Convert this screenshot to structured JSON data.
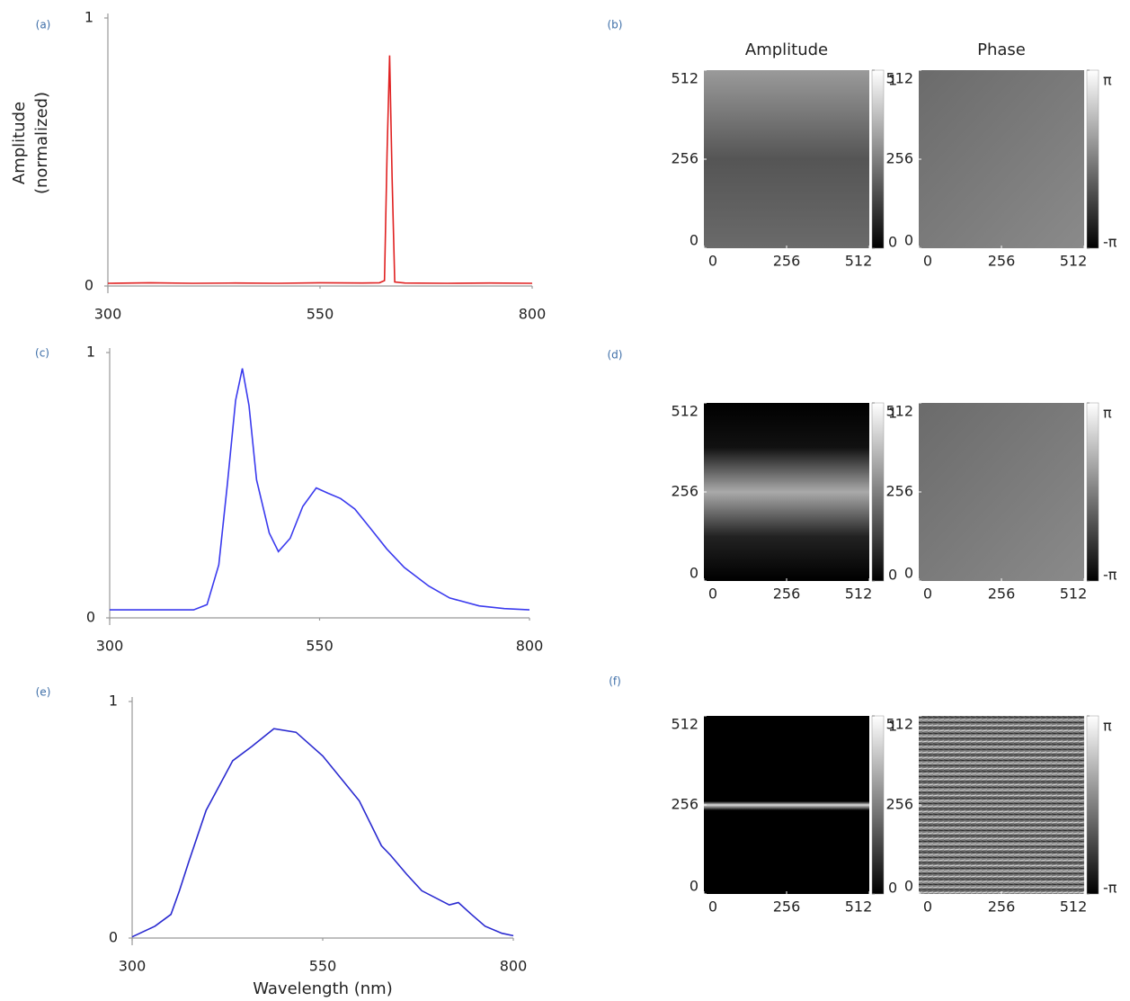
{
  "chart_data": [
    {
      "type": "line",
      "panel_label": "(a)",
      "ylabel": [
        "Amplitude",
        "(normalized)"
      ],
      "color": "#e02020",
      "x": [
        300,
        350,
        400,
        450,
        500,
        550,
        600,
        620,
        626,
        629,
        632,
        635,
        638,
        650,
        700,
        750,
        800
      ],
      "values": [
        0.01,
        0.012,
        0.01,
        0.011,
        0.01,
        0.012,
        0.011,
        0.012,
        0.02,
        0.5,
        0.86,
        0.4,
        0.015,
        0.011,
        0.01,
        0.011,
        0.01
      ],
      "xlim": [
        300,
        800
      ],
      "xticks": [
        300,
        550,
        800
      ],
      "ylim": [
        0,
        1
      ],
      "yticks": [
        0,
        1
      ]
    },
    {
      "type": "image",
      "panel_label": "(b)",
      "panels": [
        {
          "title": "Amplitude",
          "xlim": [
            0,
            512
          ],
          "xticks": [
            0,
            256,
            512
          ],
          "ylim": [
            0,
            512
          ],
          "yticks": [
            0,
            256,
            512
          ],
          "clim": [
            0,
            1
          ],
          "cticks": [
            0,
            1
          ]
        },
        {
          "title": "Phase",
          "xlim": [
            0,
            512
          ],
          "xticks": [
            0,
            256,
            512
          ],
          "ylim": [
            0,
            512
          ],
          "yticks": [
            0,
            256,
            512
          ],
          "clim": [
            -3.14159,
            3.14159
          ],
          "cticks": [
            {
              "value": -3.14159,
              "label": "-π"
            },
            {
              "value": 3.14159,
              "label": "π"
            }
          ]
        }
      ]
    },
    {
      "type": "line",
      "panel_label": "(c)",
      "color": "#3a3aee",
      "x": [
        300,
        350,
        400,
        416,
        430,
        440,
        450,
        458,
        466,
        475,
        490,
        501,
        515,
        530,
        546,
        560,
        575,
        592,
        610,
        630,
        651,
        680,
        705,
        740,
        770,
        800
      ],
      "values": [
        0.03,
        0.03,
        0.03,
        0.05,
        0.2,
        0.5,
        0.82,
        0.94,
        0.8,
        0.52,
        0.32,
        0.25,
        0.3,
        0.42,
        0.49,
        0.47,
        0.45,
        0.41,
        0.34,
        0.26,
        0.19,
        0.12,
        0.075,
        0.045,
        0.035,
        0.03
      ],
      "xlim": [
        300,
        800
      ],
      "xticks": [
        300,
        550,
        800
      ],
      "ylim": [
        0,
        1
      ],
      "yticks": [
        0,
        1
      ]
    },
    {
      "type": "image",
      "panel_label": "(d)",
      "panels": [
        {
          "xlim": [
            0,
            512
          ],
          "xticks": [
            0,
            256,
            512
          ],
          "ylim": [
            0,
            512
          ],
          "yticks": [
            0,
            256,
            512
          ],
          "clim": [
            0,
            1
          ],
          "cticks": [
            0,
            1
          ]
        },
        {
          "xlim": [
            0,
            512
          ],
          "xticks": [
            0,
            256,
            512
          ],
          "ylim": [
            0,
            512
          ],
          "yticks": [
            0,
            256,
            512
          ],
          "clim": [
            -3.14159,
            3.14159
          ],
          "cticks": [
            {
              "value": -3.14159,
              "label": "-π"
            },
            {
              "value": 3.14159,
              "label": "π"
            }
          ]
        }
      ]
    },
    {
      "type": "line",
      "panel_label": "(e)",
      "color": "#2a2ad0",
      "xlabel": "Wavelength (nm)",
      "x": [
        300,
        330,
        351,
        362,
        374,
        397,
        432,
        457,
        486,
        515,
        550,
        598,
        627,
        639,
        660,
        680,
        716,
        728,
        745,
        763,
        785,
        800
      ],
      "values": [
        0.005,
        0.05,
        0.1,
        0.2,
        0.32,
        0.54,
        0.75,
        0.81,
        0.885,
        0.87,
        0.77,
        0.58,
        0.39,
        0.35,
        0.27,
        0.2,
        0.14,
        0.15,
        0.1,
        0.05,
        0.02,
        0.01
      ],
      "xlim": [
        300,
        800
      ],
      "xticks": [
        300,
        550,
        800
      ],
      "ylim": [
        0,
        1
      ],
      "yticks": [
        0,
        1
      ]
    },
    {
      "type": "image",
      "panel_label": "(f)",
      "panels": [
        {
          "xlim": [
            0,
            512
          ],
          "xticks": [
            0,
            256,
            512
          ],
          "ylim": [
            0,
            512
          ],
          "yticks": [
            0,
            256,
            512
          ],
          "clim": [
            0,
            1
          ],
          "cticks": [
            0,
            1
          ]
        },
        {
          "xlim": [
            0,
            512
          ],
          "xticks": [
            0,
            256,
            512
          ],
          "ylim": [
            0,
            512
          ],
          "yticks": [
            0,
            256,
            512
          ],
          "clim": [
            -3.14159,
            3.14159
          ],
          "cticks": [
            {
              "value": -3.14159,
              "label": "-π"
            },
            {
              "value": 3.14159,
              "label": "π"
            }
          ]
        }
      ]
    }
  ]
}
